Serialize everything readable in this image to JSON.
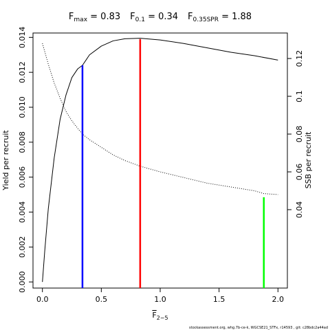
{
  "chart_data": {
    "type": "line",
    "title": {
      "fmax_label": "F",
      "fmax_sub": "max",
      "fmax_value": " = 0.83",
      "f01_label": "F",
      "f01_sub": "0.1",
      "f01_value": " = 0.34",
      "fspr_label": "F",
      "fspr_sub": "0.35SPR",
      "fspr_value": " = 1.88"
    },
    "xlabel": {
      "main": "F",
      "sub": "2−5"
    },
    "ylabel": "Yield per recruit",
    "y2label": "SSB per recruit",
    "xlim": [
      -0.08,
      2.08
    ],
    "ylim": [
      -0.00035,
      0.01425
    ],
    "y2lim": [
      -0.0015,
      0.1335
    ],
    "x_ticks": [
      0,
      0.5,
      1,
      1.5,
      2
    ],
    "x_tick_labels": [
      "0.0",
      "0.5",
      "1.0",
      "1.5",
      "2.0"
    ],
    "y_ticks": [
      0,
      0.002,
      0.004,
      0.006,
      0.008,
      0.01,
      0.012,
      0.014
    ],
    "y_tick_labels": [
      "0.000",
      "0.002",
      "0.004",
      "0.006",
      "0.008",
      "0.010",
      "0.012",
      "0.014"
    ],
    "y2_ticks": [
      0.04,
      0.06,
      0.08,
      0.1,
      0.12
    ],
    "y2_tick_labels": [
      "0.04",
      "0.06",
      "0.08",
      "0.1",
      "0.12"
    ],
    "grid": false,
    "series": [
      {
        "style": "solid",
        "axis": "left",
        "color": "#000000",
        "x": [
          0.0,
          0.02,
          0.05,
          0.1,
          0.15,
          0.2,
          0.25,
          0.3,
          0.34,
          0.4,
          0.5,
          0.6,
          0.7,
          0.83,
          1.0,
          1.2,
          1.4,
          1.6,
          1.8,
          2.0
        ],
        "y": [
          0.0,
          0.0018,
          0.0042,
          0.0071,
          0.0093,
          0.0107,
          0.0117,
          0.0122,
          0.0124,
          0.013,
          0.0135,
          0.0138,
          0.01392,
          0.01395,
          0.01385,
          0.01365,
          0.0134,
          0.01315,
          0.01295,
          0.0127
        ]
      },
      {
        "style": "dotted",
        "axis": "right",
        "color": "#000000",
        "x": [
          0.0,
          0.05,
          0.1,
          0.15,
          0.2,
          0.25,
          0.3,
          0.34,
          0.4,
          0.5,
          0.6,
          0.7,
          0.83,
          1.0,
          1.2,
          1.4,
          1.6,
          1.8,
          1.88,
          2.0
        ],
        "y": [
          0.128,
          0.117,
          0.107,
          0.099,
          0.092,
          0.087,
          0.083,
          0.08,
          0.077,
          0.073,
          0.069,
          0.066,
          0.063,
          0.06,
          0.057,
          0.054,
          0.052,
          0.05,
          0.0485,
          0.048
        ]
      }
    ],
    "reference_lines": [
      {
        "name": "F0.1",
        "x": 0.34,
        "y_top": 0.0124,
        "color": "#0000ff"
      },
      {
        "name": "Fmax",
        "x": 0.83,
        "y_top": 0.0139,
        "color": "#ff0000"
      },
      {
        "name": "F0.35SPR",
        "x": 1.88,
        "y_top": 0.00485,
        "color": "#00ff00"
      }
    ]
  },
  "footer": "stockassessment.org, whg.7b-ce-k, WGCSE21_STFx, r14593 , git: c28bdc2a44ad"
}
